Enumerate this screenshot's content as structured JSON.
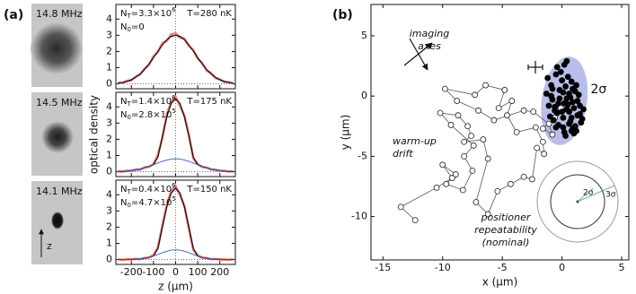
{
  "panel_labels": [
    "(a)",
    "(b)"
  ],
  "images": [
    {
      "label": "14.8 MHz"
    },
    {
      "label": "14.5 MHz"
    },
    {
      "label": "14.1 MHz"
    }
  ],
  "z_arrow": "z",
  "chart_data": [
    {
      "type": "line",
      "xlim": [
        -270,
        270
      ],
      "xticks": [
        -200,
        -100,
        0,
        100,
        200
      ],
      "xticklabels": false,
      "ylim": [
        -0.3,
        4.9
      ],
      "yticks": [
        0,
        1,
        2,
        3,
        4
      ],
      "x": [
        -260,
        -240,
        -220,
        -200,
        -180,
        -160,
        -140,
        -120,
        -100,
        -80,
        -60,
        -40,
        -20,
        0,
        20,
        40,
        60,
        80,
        100,
        120,
        140,
        160,
        180,
        200,
        220,
        240,
        260
      ],
      "annotations": [
        {
          "parts": [
            {
              "text": "N"
            },
            {
              "sub": "T"
            },
            {
              "text": "=3.3×10"
            },
            {
              "sup": "6"
            }
          ]
        },
        {
          "parts": [
            {
              "text": "N"
            },
            {
              "sub": "0"
            },
            {
              "text": "=0"
            }
          ]
        },
        {
          "parts": [
            {
              "text": "T=280 nK"
            }
          ]
        }
      ],
      "series": [
        {
          "color": "#ef7f7f",
          "values": [
            0.08,
            0.05,
            0.19,
            0.22,
            0.46,
            0.58,
            0.95,
            1.18,
            1.7,
            1.96,
            2.52,
            2.65,
            3.05,
            3.12,
            2.85,
            2.8,
            2.33,
            2.1,
            1.55,
            1.3,
            0.82,
            0.67,
            0.36,
            0.28,
            0.12,
            0.11,
            0.03
          ]
        },
        {
          "color": "#111111",
          "values": [
            0.05,
            0.09,
            0.15,
            0.25,
            0.41,
            0.62,
            0.89,
            1.23,
            1.62,
            2.02,
            2.4,
            2.72,
            2.93,
            3.0,
            2.93,
            2.72,
            2.4,
            2.02,
            1.62,
            1.23,
            0.89,
            0.62,
            0.41,
            0.25,
            0.15,
            0.09,
            0.05
          ]
        }
      ]
    },
    {
      "type": "line",
      "xlim": [
        -270,
        270
      ],
      "xticks": [
        -200,
        -100,
        0,
        100,
        200
      ],
      "xticklabels": false,
      "ylim": [
        -0.3,
        4.9
      ],
      "yticks": [
        0,
        1,
        2,
        3,
        4
      ],
      "ylabel": "optical density",
      "x": [
        -260,
        -240,
        -220,
        -200,
        -180,
        -160,
        -140,
        -120,
        -100,
        -80,
        -60,
        -40,
        -20,
        0,
        20,
        40,
        60,
        80,
        100,
        120,
        140,
        160,
        180,
        200,
        220,
        240,
        260
      ],
      "annotations": [
        {
          "parts": [
            {
              "text": "N"
            },
            {
              "sub": "T"
            },
            {
              "text": "=1.4×10"
            },
            {
              "sup": "6"
            }
          ]
        },
        {
          "parts": [
            {
              "text": "N"
            },
            {
              "sub": "0"
            },
            {
              "text": "=2.8×10"
            },
            {
              "sup": "5"
            }
          ]
        },
        {
          "parts": [
            {
              "text": "T=175 nK"
            }
          ]
        }
      ],
      "series": [
        {
          "color": "#ef7f7f",
          "values": [
            0.03,
            0.0,
            0.06,
            0.05,
            0.14,
            0.13,
            0.27,
            0.3,
            0.48,
            1.05,
            2.05,
            3.52,
            4.35,
            4.62,
            4.05,
            3.45,
            2.3,
            0.82,
            0.47,
            0.29,
            0.26,
            0.14,
            0.12,
            0.05,
            0.06,
            0.01,
            0.02
          ]
        },
        {
          "color": "#111111",
          "values": [
            0.01,
            0.02,
            0.04,
            0.07,
            0.11,
            0.16,
            0.24,
            0.33,
            0.43,
            0.9,
            2.17,
            3.38,
            4.21,
            4.5,
            4.21,
            3.38,
            2.17,
            0.9,
            0.43,
            0.33,
            0.24,
            0.16,
            0.11,
            0.07,
            0.04,
            0.02,
            0.01
          ]
        },
        {
          "color": "#3b5cc4",
          "values": [
            0.01,
            0.02,
            0.04,
            0.07,
            0.11,
            0.16,
            0.24,
            0.33,
            0.43,
            0.54,
            0.64,
            0.72,
            0.78,
            0.8,
            0.78,
            0.72,
            0.64,
            0.54,
            0.43,
            0.33,
            0.24,
            0.16,
            0.11,
            0.07,
            0.04,
            0.02,
            0.01
          ]
        }
      ]
    },
    {
      "type": "line",
      "xlim": [
        -270,
        270
      ],
      "xticks": [
        -200,
        -100,
        0,
        100,
        200
      ],
      "xticklabels": true,
      "ylim": [
        -0.3,
        4.9
      ],
      "yticks": [
        0,
        1,
        2,
        3,
        4
      ],
      "xlabel": "z (µm)",
      "x": [
        -260,
        -240,
        -220,
        -200,
        -180,
        -160,
        -140,
        -120,
        -100,
        -80,
        -60,
        -40,
        -20,
        0,
        20,
        40,
        60,
        80,
        100,
        120,
        140,
        160,
        180,
        200,
        220,
        240,
        260
      ],
      "annotations": [
        {
          "parts": [
            {
              "text": "N"
            },
            {
              "sub": "T"
            },
            {
              "text": "=0.4×10"
            },
            {
              "sup": "6"
            }
          ]
        },
        {
          "parts": [
            {
              "text": "N"
            },
            {
              "sub": "0"
            },
            {
              "text": "=4.7×10"
            },
            {
              "sup": "5"
            }
          ]
        },
        {
          "parts": [
            {
              "text": "T=150 nK"
            }
          ]
        }
      ],
      "series": [
        {
          "color": "#ef7f7f",
          "values": [
            0.02,
            -0.02,
            0.03,
            0.0,
            0.05,
            0.02,
            0.1,
            0.12,
            0.28,
            0.75,
            2.1,
            3.38,
            4.25,
            4.55,
            3.95,
            3.3,
            1.9,
            0.6,
            0.25,
            0.11,
            0.09,
            0.02,
            0.04,
            0.0,
            0.01,
            -0.01,
            0.02
          ]
        },
        {
          "color": "#111111",
          "values": [
            0.0,
            0.0,
            0.0,
            0.01,
            0.02,
            0.04,
            0.08,
            0.14,
            0.22,
            0.68,
            1.99,
            3.24,
            4.1,
            4.4,
            4.1,
            3.24,
            1.99,
            0.68,
            0.22,
            0.14,
            0.08,
            0.04,
            0.02,
            0.01,
            0.0,
            0.0,
            0.0
          ]
        },
        {
          "color": "#3b5cc4",
          "values": [
            0.0,
            0.0,
            0.0,
            0.01,
            0.02,
            0.04,
            0.08,
            0.14,
            0.22,
            0.31,
            0.42,
            0.51,
            0.58,
            0.6,
            0.58,
            0.51,
            0.42,
            0.31,
            0.22,
            0.14,
            0.08,
            0.04,
            0.02,
            0.01,
            0.0,
            0.0,
            0.0
          ]
        }
      ]
    },
    {
      "type": "scatter",
      "xlim": [
        -16,
        5.6
      ],
      "xticks": [
        -15,
        -10,
        -5,
        0,
        5
      ],
      "xticklabels": true,
      "ylim": [
        -13.6,
        7.6
      ],
      "yticks": [
        -10,
        -5,
        0,
        5
      ],
      "xlabel": "x (µm)",
      "ylabel": "y (µm)",
      "ellipse": {
        "cx": 0.2,
        "cy": -0.4,
        "rx": 1.9,
        "ry": 3.7,
        "color": "#b9bfea",
        "label": "2σ"
      },
      "annotations": [
        {
          "lines": [
            "imaging",
            "axes"
          ]
        },
        {
          "lines": [
            "warm-up",
            "drift"
          ]
        },
        {
          "lines": [
            "positioner",
            "repeatability",
            "(nominal)"
          ]
        }
      ],
      "inset_labels": [
        "2σ",
        "3σ"
      ],
      "series": [
        {
          "style": "open",
          "connected": true,
          "color": "#555555",
          "x": [
            -12.3,
            -13.5,
            -10.5,
            -9.2,
            -10,
            -8.9,
            -9.7,
            -8.3,
            -7.5,
            -8.2,
            -7.4,
            -9.3,
            -10.2,
            -8.7,
            -7.9,
            -7.6,
            -8.2,
            -6.6,
            -6.2,
            -7.2,
            -6.2,
            -5.4,
            -4.3,
            -3.2,
            -2.5,
            -2.1,
            -1.5,
            -1.6,
            -2.2,
            -3.8,
            -4.6,
            -4.2,
            -5.3,
            -4.8,
            -6.4,
            -7.3,
            -9.8,
            -8.8,
            -7.0,
            -5.7,
            -3.2,
            -2.4,
            -1.1,
            -0.8,
            -1.6,
            -0.6,
            -0.1
          ],
          "y": [
            -10.3,
            -9.2,
            -7.6,
            -6.8,
            -5.7,
            -6.5,
            -7.3,
            -7.8,
            -6.2,
            -5,
            -4.1,
            -2.4,
            -1.4,
            -1.6,
            -2.5,
            -3.3,
            -3.8,
            -3.6,
            -5.2,
            -8.8,
            -9.8,
            -7.9,
            -7.3,
            -6.7,
            -6.9,
            -4.3,
            -4.8,
            -3.8,
            -2.6,
            -3.0,
            -1.6,
            -0.4,
            -1.0,
            0.5,
            0.9,
            0.1,
            0.6,
            -0.4,
            -1.2,
            -2.0,
            -1.2,
            -1.3,
            -2.3,
            -3.2,
            -2.7,
            -1.8,
            -1.0
          ]
        },
        {
          "style": "filled",
          "connected": false,
          "color": "#000000",
          "x": [
            0.2,
            -0.5,
            0.8,
            1.1,
            -0.9,
            0.4,
            1.5,
            -0.2,
            0.6,
            -1.2,
            0.9,
            0.1,
            -0.6,
            1.3,
            0.3,
            -0.3,
            0.7,
            1.8,
            -0.8,
            0.0,
            0.5,
            1.2,
            -0.4,
            0.9,
            -1.0,
            0.2,
            1.6,
            -0.1,
            0.6,
            1.0,
            -0.7,
            0.4,
            1.4,
            -0.3,
            0.8,
            0.1,
            -1.3,
            0.7,
            1.1,
            -0.5,
            0.3,
            1.7,
            0.0,
            -0.8,
            0.5,
            1.3,
            -0.2,
            0.9,
            0.2,
            -0.6,
            1.0,
            0.6,
            -1.1,
            0.4,
            1.5,
            -0.4,
            0.8,
            0.1,
            1.2,
            -0.9
          ],
          "y": [
            2.6,
            1.8,
            1.2,
            0.4,
            0.9,
            -0.2,
            -0.8,
            0.5,
            -1.3,
            1.5,
            -0.5,
            -1.8,
            -0.9,
            -1.6,
            0.8,
            -2.4,
            -2.1,
            -1.1,
            -0.3,
            1.3,
            -0.7,
            0.9,
            -1.4,
            -2.7,
            -1.7,
            -3.0,
            -2.2,
            2.0,
            0.2,
            -1.0,
            -2.0,
            -1.1,
            0.1,
            -0.6,
            -2.9,
            0.3,
            0.2,
            -0.1,
            -2.5,
            -2.6,
            -3.3,
            -1.9,
            -1.3,
            0.6,
            1.6,
            -0.4,
            -0.2,
            0.6,
            -0.6,
            -1.2,
            -3.1,
            -2.3,
            -0.8,
            2.9,
            -1.5,
            2.4,
            -1.8,
            -2.6,
            -2.9,
            0.0
          ]
        }
      ]
    }
  ]
}
